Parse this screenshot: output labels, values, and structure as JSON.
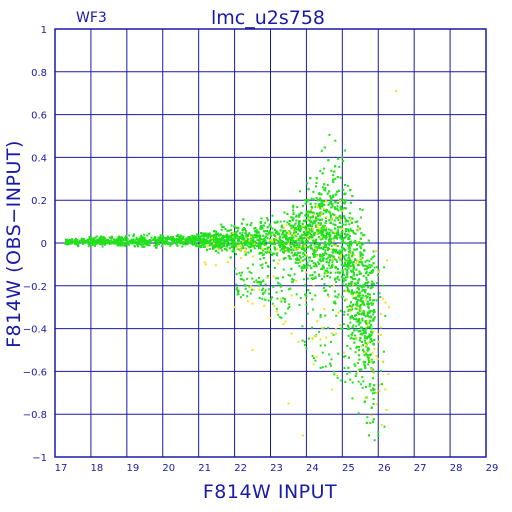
{
  "chart_data": {
    "type": "scatter",
    "title": "lmc_u2s758",
    "subtitle": "WF3",
    "xlabel": "F814W INPUT",
    "ylabel": "F814W (OBS−INPUT)",
    "xlim": [
      17,
      29
    ],
    "ylim": [
      -1,
      1
    ],
    "xticks": [
      17,
      18,
      19,
      20,
      21,
      22,
      23,
      24,
      25,
      26,
      27,
      28,
      29
    ],
    "yticks": [
      1,
      0.8,
      0.6,
      0.4,
      0.2,
      0,
      -0.2,
      -0.4,
      -0.6,
      -0.8,
      -1
    ],
    "ytick_labels": [
      "1",
      "0.8",
      "0.6",
      "0.4",
      "0.2",
      "0",
      "−0.2",
      "−0.4",
      "−0.6",
      "−0.8",
      "−1"
    ],
    "grid": true,
    "series": [
      {
        "color": "#22e01c",
        "values_sample": [
          [
            17.4,
            0.01
          ],
          [
            18.0,
            0.0
          ],
          [
            18.5,
            0.01
          ],
          [
            19.0,
            0.0
          ],
          [
            19.5,
            0.01
          ],
          [
            20.0,
            0.01
          ],
          [
            20.5,
            0.02
          ],
          [
            21.0,
            0.01
          ],
          [
            21.5,
            0.02
          ],
          [
            22.0,
            0.03
          ],
          [
            22.5,
            0.03
          ],
          [
            23.0,
            0.04
          ],
          [
            23.5,
            0.05
          ],
          [
            24.0,
            0.06
          ],
          [
            24.5,
            0.08
          ],
          [
            24.8,
            0.3
          ],
          [
            25.0,
            0.4
          ],
          [
            25.1,
            0.2
          ],
          [
            25.3,
            -0.1
          ],
          [
            25.5,
            -0.3
          ],
          [
            25.7,
            -0.5
          ],
          [
            25.9,
            -0.7
          ],
          [
            26.0,
            -0.9
          ],
          [
            24.0,
            -0.25
          ],
          [
            23.5,
            -0.15
          ]
        ]
      },
      {
        "color": "#f0e020",
        "values_sample": [
          [
            21.2,
            -0.1
          ],
          [
            22.0,
            -0.3
          ],
          [
            22.5,
            -0.5
          ],
          [
            23.0,
            -0.35
          ],
          [
            23.5,
            -0.75
          ],
          [
            24.2,
            -0.2
          ],
          [
            24.8,
            0.05
          ],
          [
            25.0,
            0.15
          ],
          [
            25.2,
            -0.05
          ],
          [
            25.4,
            -0.3
          ],
          [
            25.8,
            -0.55
          ],
          [
            26.1,
            -0.85
          ],
          [
            26.5,
            0.71
          ],
          [
            26.3,
            -0.3
          ],
          [
            23.9,
            -0.9
          ]
        ]
      }
    ]
  }
}
